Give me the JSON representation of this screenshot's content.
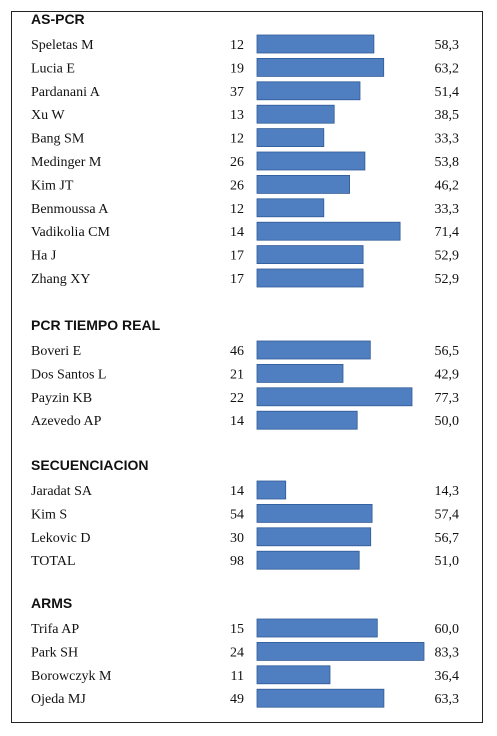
{
  "chart_data": {
    "type": "bar",
    "orientation": "horizontal",
    "bar_color": "#4f7fc1",
    "sections": [
      {
        "title": "AS-PCR",
        "rows": [
          {
            "name": "Speletas M",
            "n": "12",
            "value": 58.3,
            "label": "58,3"
          },
          {
            "name": "Lucia E",
            "n": "19",
            "value": 63.2,
            "label": "63,2"
          },
          {
            "name": "Pardanani A",
            "n": "37",
            "value": 51.4,
            "label": "51,4"
          },
          {
            "name": "Xu W",
            "n": "13",
            "value": 38.5,
            "label": "38,5"
          },
          {
            "name": "Bang SM",
            "n": "12",
            "value": 33.3,
            "label": "33,3"
          },
          {
            "name": "Medinger M",
            "n": "26",
            "value": 53.8,
            "label": "53,8"
          },
          {
            "name": "Kim JT",
            "n": "26",
            "value": 46.2,
            "label": "46,2"
          },
          {
            "name": "Benmoussa A",
            "n": "12",
            "value": 33.3,
            "label": "33,3"
          },
          {
            "name": "Vadikolia CM",
            "n": "14",
            "value": 71.4,
            "label": "71,4"
          },
          {
            "name": "Ha J",
            "n": "17",
            "value": 52.9,
            "label": "52,9"
          },
          {
            "name": "Zhang XY",
            "n": "17",
            "value": 52.9,
            "label": "52,9"
          }
        ]
      },
      {
        "title": "PCR TIEMPO REAL",
        "rows": [
          {
            "name": "Boveri E",
            "n": "46",
            "value": 56.5,
            "label": "56,5"
          },
          {
            "name": "Dos Santos L",
            "n": "21",
            "value": 42.9,
            "label": "42,9"
          },
          {
            "name": "Payzin KB",
            "n": "22",
            "value": 77.3,
            "label": "77,3"
          },
          {
            "name": "Azevedo AP",
            "n": "14",
            "value": 50.0,
            "label": "50,0"
          }
        ]
      },
      {
        "title": "SECUENCIACION",
        "rows": [
          {
            "name": "Jaradat SA",
            "n": "14",
            "value": 14.3,
            "label": "14,3"
          },
          {
            "name": "Kim S",
            "n": "54",
            "value": 57.4,
            "label": "57,4"
          },
          {
            "name": "Lekovic D",
            "n": "30",
            "value": 56.7,
            "label": "56,7"
          },
          {
            "name": "TOTAL",
            "n": "98",
            "value": 51.0,
            "label": "51,0"
          }
        ]
      },
      {
        "title": "ARMS",
        "rows": [
          {
            "name": "Trifa AP",
            "n": "15",
            "value": 60.0,
            "label": "60,0"
          },
          {
            "name": "Park SH",
            "n": "24",
            "value": 83.3,
            "label": "83,3"
          },
          {
            "name": "Borowczyk M",
            "n": "11",
            "value": 36.4,
            "label": "36,4"
          },
          {
            "name": "Ojeda MJ",
            "n": "49",
            "value": 63.3,
            "label": "63,3"
          }
        ]
      }
    ]
  }
}
